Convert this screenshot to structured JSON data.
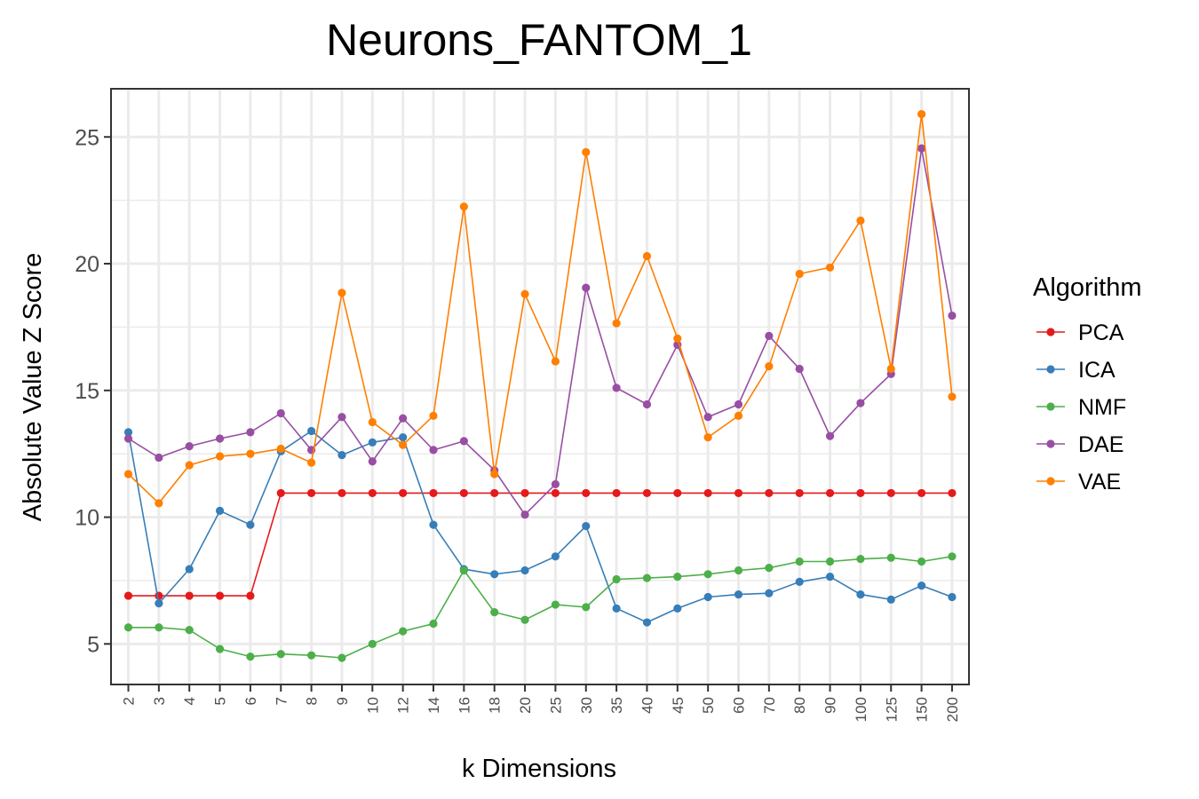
{
  "chart_data": {
    "type": "line",
    "title": "Neurons_FANTOM_1",
    "xlabel": "k Dimensions",
    "ylabel": "Absolute Value Z Score",
    "categories": [
      "2",
      "3",
      "4",
      "5",
      "6",
      "7",
      "8",
      "9",
      "10",
      "12",
      "14",
      "16",
      "18",
      "20",
      "25",
      "30",
      "35",
      "40",
      "45",
      "50",
      "60",
      "70",
      "80",
      "90",
      "100",
      "125",
      "150",
      "200"
    ],
    "yticks": [
      5,
      10,
      15,
      20,
      25
    ],
    "ylim": [
      3.4,
      26.9
    ],
    "grid": true,
    "legend": {
      "title": "Algorithm",
      "position": "right"
    },
    "series": [
      {
        "name": "PCA",
        "color": "#e41a1c",
        "values": [
          6.9,
          6.9,
          6.9,
          6.9,
          6.9,
          10.95,
          10.95,
          10.95,
          10.95,
          10.95,
          10.95,
          10.95,
          10.95,
          10.95,
          10.95,
          10.95,
          10.95,
          10.95,
          10.95,
          10.95,
          10.95,
          10.95,
          10.95,
          10.95,
          10.95,
          10.95,
          10.95,
          10.95
        ]
      },
      {
        "name": "ICA",
        "color": "#377eb8",
        "values": [
          13.35,
          6.6,
          7.95,
          10.25,
          9.7,
          12.6,
          13.4,
          12.45,
          12.95,
          13.15,
          9.7,
          7.95,
          7.75,
          7.9,
          8.45,
          9.65,
          6.4,
          5.85,
          6.4,
          6.85,
          6.95,
          7.0,
          7.45,
          7.65,
          6.95,
          6.75,
          7.3,
          6.85
        ]
      },
      {
        "name": "NMF",
        "color": "#4daf4a",
        "values": [
          5.65,
          5.65,
          5.55,
          4.8,
          4.5,
          4.6,
          4.55,
          4.45,
          5.0,
          5.5,
          5.8,
          7.9,
          6.25,
          5.95,
          6.55,
          6.45,
          7.55,
          7.6,
          7.65,
          7.75,
          7.9,
          8.0,
          8.25,
          8.25,
          8.35,
          8.4,
          8.25,
          8.45
        ]
      },
      {
        "name": "DAE",
        "color": "#984ea3",
        "values": [
          13.1,
          12.35,
          12.8,
          13.1,
          13.35,
          14.1,
          12.65,
          13.95,
          12.2,
          13.9,
          12.65,
          13.0,
          11.85,
          10.1,
          11.3,
          19.05,
          15.1,
          14.45,
          16.8,
          13.95,
          14.45,
          17.15,
          15.85,
          13.2,
          14.5,
          15.65,
          24.55,
          17.95
        ]
      },
      {
        "name": "VAE",
        "color": "#ff7f00",
        "values": [
          11.7,
          10.55,
          12.05,
          12.4,
          12.5,
          12.7,
          12.15,
          18.85,
          13.75,
          12.85,
          14.0,
          22.25,
          11.7,
          18.8,
          16.15,
          24.4,
          17.65,
          20.3,
          17.05,
          13.15,
          14.0,
          15.95,
          19.6,
          19.85,
          21.7,
          15.85,
          25.9,
          14.75
        ]
      }
    ]
  }
}
